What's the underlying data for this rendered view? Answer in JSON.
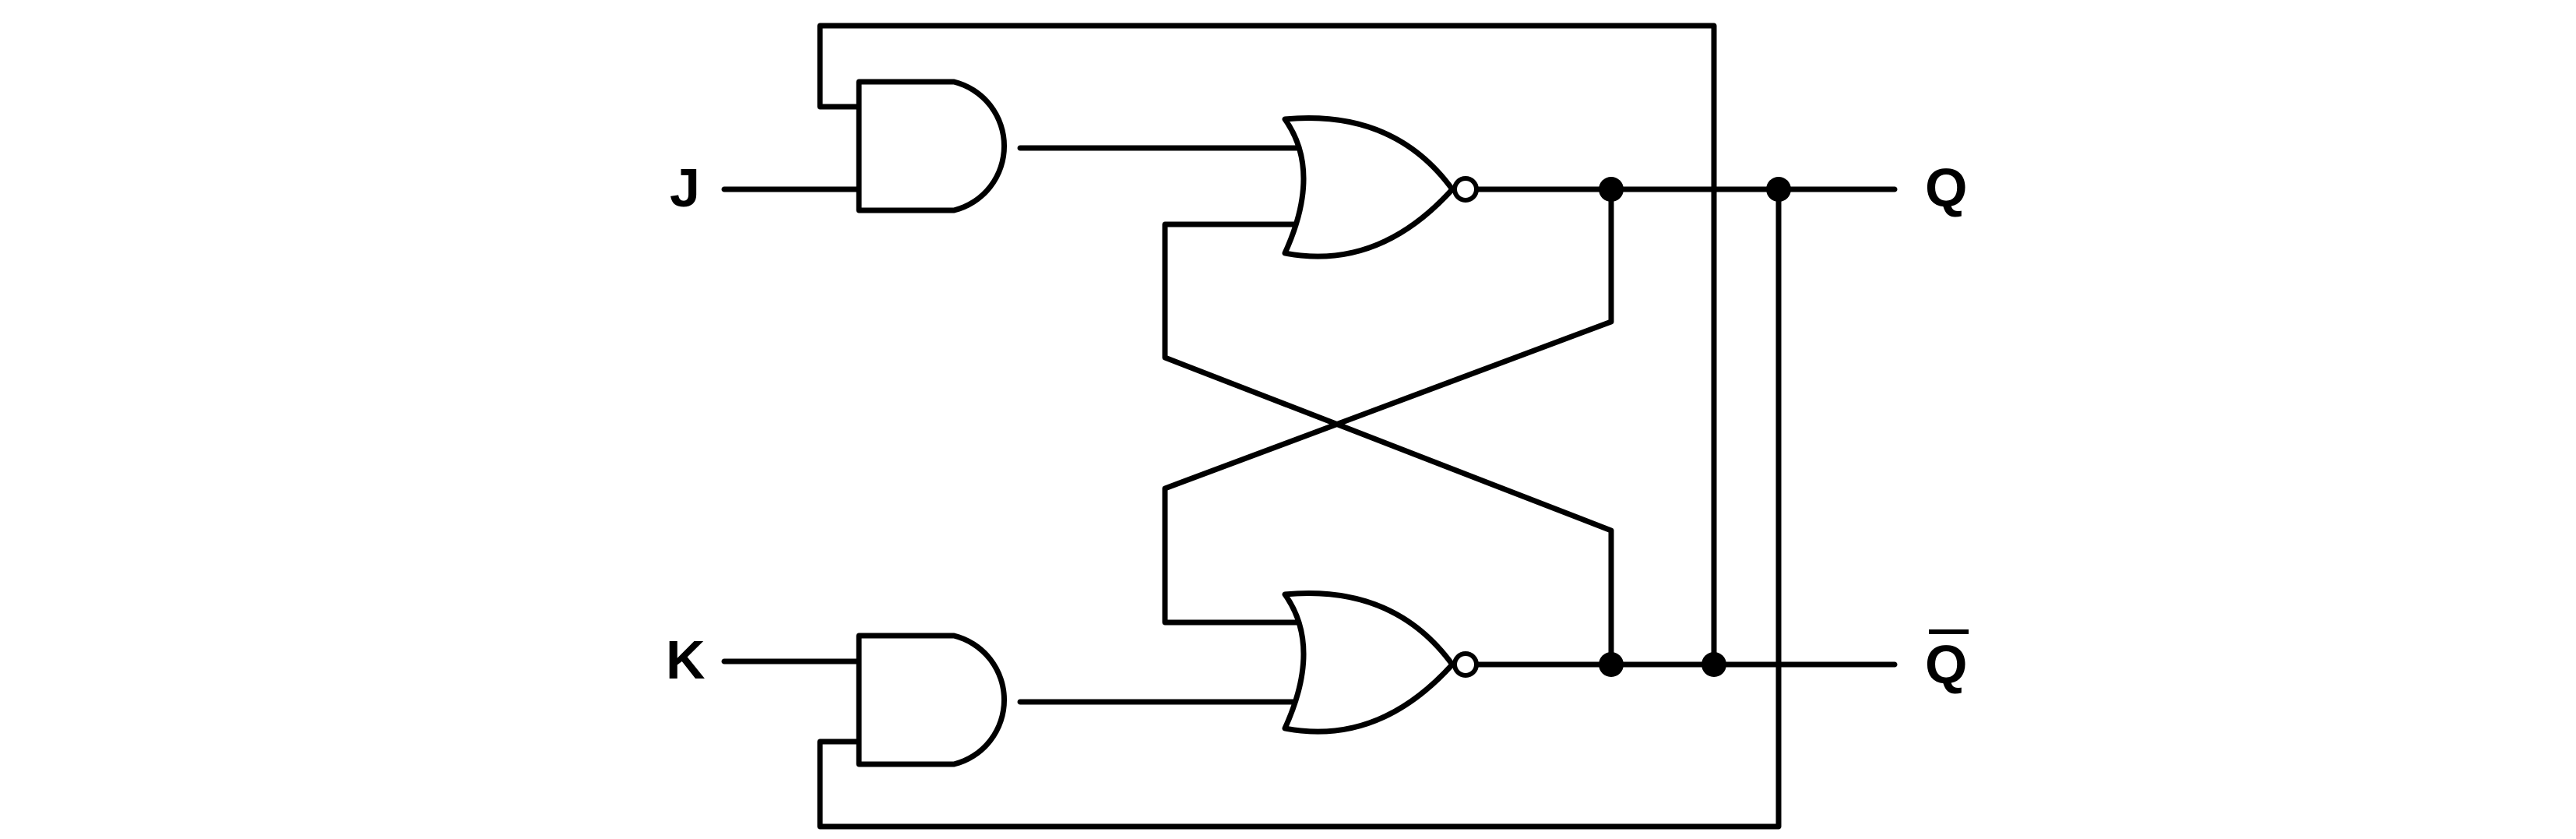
{
  "diagram": {
    "type": "JK flip-flop circuit (two AND gates, two cross-coupled NOR gates)",
    "labels": {
      "input_j": "J",
      "input_k": "K",
      "output_q": "Q",
      "output_q_bar": "Q"
    },
    "q_bar_overline": true,
    "colors": {
      "stroke": "#000000",
      "background": "#ffffff"
    }
  }
}
